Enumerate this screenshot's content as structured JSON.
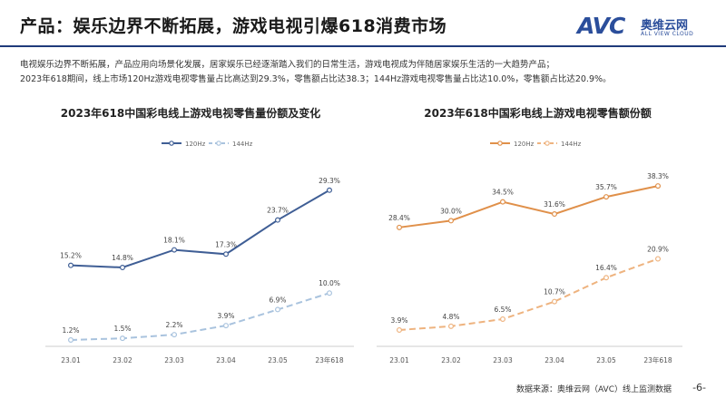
{
  "header": {
    "title": "产品：娱乐边界不断拓展，游戏电视引爆618消费市场",
    "logo_text": "AVC",
    "logo_cn": "奥维云网",
    "logo_en": "ALL VIEW CLOUD"
  },
  "description": {
    "line1": "电视娱乐边界不断拓展，产品应用向场景化发展，居家娱乐已经逐渐踏入我们的日常生活，游戏电视成为伴随居家娱乐生活的一大趋势产品；",
    "line2": "2023年618期间，线上市场120Hz游戏电视零售量占比高达到29.3%，零售额占比达38.3；144Hz游戏电视零售量占比达10.0%，零售额占比达20.9%。"
  },
  "footer": {
    "source": "数据来源：奥维云网（AVC）线上监测数据",
    "page": "-6-"
  },
  "colors": {
    "left_120": "#3f5e95",
    "left_144": "#a9c3de",
    "right_120": "#e0904a",
    "right_144": "#eeb37f"
  },
  "chart_data": [
    {
      "type": "line",
      "title": "2023年618中国彩电线上游戏电视零售量份额及变化",
      "categories": [
        "23.01",
        "23.02",
        "23.03",
        "23.04",
        "23.05",
        "23年618"
      ],
      "series": [
        {
          "name": "120Hz",
          "values": [
            15.2,
            14.8,
            18.1,
            17.3,
            23.7,
            29.3
          ],
          "labels": [
            "15.2%",
            "14.8%",
            "18.1%",
            "17.3%",
            "23.7%",
            "29.3%"
          ],
          "style": "solid"
        },
        {
          "name": "144Hz",
          "values": [
            1.2,
            1.5,
            2.2,
            3.9,
            6.9,
            10.0
          ],
          "labels": [
            "1.2%",
            "1.5%",
            "2.2%",
            "3.9%",
            "6.9%",
            "10.0%"
          ],
          "style": "dashed"
        }
      ],
      "ylim": [
        0,
        33
      ],
      "legend_position": "top-left",
      "grid": false
    },
    {
      "type": "line",
      "title": "2023年618中国彩电线上游戏电视零售额份额",
      "categories": [
        "23.01",
        "23.02",
        "23.03",
        "23.04",
        "23.05",
        "23年618"
      ],
      "series": [
        {
          "name": "120Hz",
          "values": [
            28.4,
            30.0,
            34.5,
            31.6,
            35.7,
            38.3
          ],
          "labels": [
            "28.4%",
            "30.0%",
            "34.5%",
            "31.6%",
            "35.7%",
            "38.3%"
          ],
          "style": "solid"
        },
        {
          "name": "144Hz",
          "values": [
            3.9,
            4.8,
            6.5,
            10.7,
            16.4,
            20.9
          ],
          "labels": [
            "3.9%",
            "4.8%",
            "6.5%",
            "10.7%",
            "16.4%",
            "20.9%"
          ],
          "style": "dashed"
        }
      ],
      "ylim": [
        0,
        42
      ],
      "legend_position": "top-left",
      "grid": false
    }
  ]
}
